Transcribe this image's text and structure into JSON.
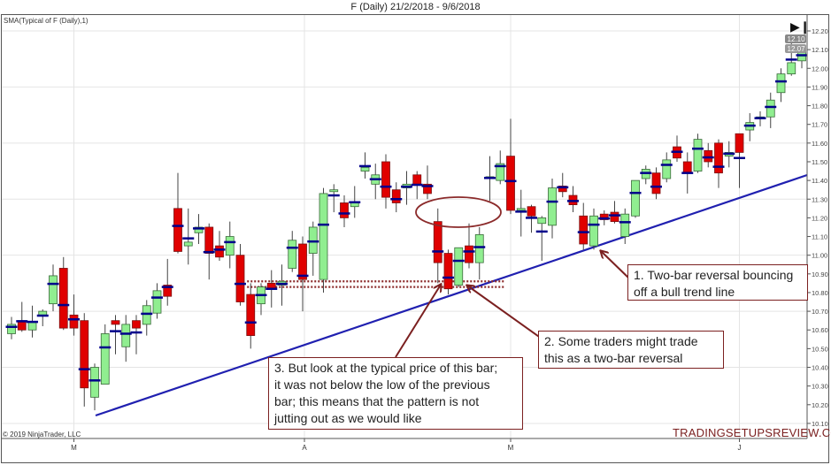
{
  "title": "F (Daily)  21/2/2018 - 9/6/2018",
  "indicator_label": "SMA(Typical of F (Daily),1)",
  "copyright": "© 2019 NinjaTrader, LLC",
  "watermark": "TRADINGSETUPSREVIEW.COM",
  "end_icon": "skip-to-end-icon",
  "colors": {
    "up": "#90ee90",
    "down": "#e00000",
    "typical": "#00008b",
    "trendline": "#2020b0",
    "annotation": "#7b2020"
  },
  "annotations": [
    {
      "lines": [
        "1. Two-bar reversal bouncing",
        "off a bull trend line"
      ]
    },
    {
      "lines": [
        "2. Some traders might trade",
        "this as a two-bar reversal"
      ]
    },
    {
      "lines": [
        "3. But look at the typical price of this bar;",
        "it was not below the low of the previous",
        "bar; this means that the pattern is not",
        "jutting out as we would like"
      ]
    }
  ],
  "chart_data": {
    "type": "candlestick",
    "title": "F (Daily)  21/2/2018 - 9/6/2018",
    "ylim": [
      10.05,
      12.25
    ],
    "yticks": [
      "12.20",
      "12.10",
      "12.00",
      "11.90",
      "11.80",
      "11.70",
      "11.60",
      "11.50",
      "11.40",
      "11.30",
      "11.20",
      "11.10",
      "11.00",
      "10.90",
      "10.80",
      "10.70",
      "10.60",
      "10.50",
      "10.40",
      "10.30",
      "10.20",
      "10.10"
    ],
    "xticks": [
      {
        "label": "M",
        "bar": 6
      },
      {
        "label": "A",
        "bar": 28
      },
      {
        "label": "M",
        "bar": 48
      },
      {
        "label": "J",
        "bar": 70
      }
    ],
    "grid": true,
    "last_price_labels": [
      "12.10",
      "12.07"
    ],
    "overlay": "typical price (H+L+C)/3",
    "trendline": {
      "start": {
        "bar": 8,
        "price": 10.14
      },
      "end": {
        "bar": 76.5,
        "price": 11.43
      }
    },
    "support_band": {
      "prices": [
        10.86,
        10.83
      ],
      "from_bar": 23,
      "to_bar": 47
    },
    "candles": [
      [
        10.58,
        10.67,
        10.55,
        10.63
      ],
      [
        10.65,
        10.75,
        10.59,
        10.6
      ],
      [
        10.6,
        10.73,
        10.56,
        10.64
      ],
      [
        10.68,
        10.71,
        10.62,
        10.7
      ],
      [
        10.74,
        10.95,
        10.7,
        10.89
      ],
      [
        10.93,
        10.99,
        10.6,
        10.61
      ],
      [
        10.68,
        10.79,
        10.57,
        10.61
      ],
      [
        10.65,
        10.69,
        10.19,
        10.29
      ],
      [
        10.24,
        10.42,
        10.17,
        10.4
      ],
      [
        10.31,
        10.63,
        10.31,
        10.58
      ],
      [
        10.65,
        10.68,
        10.47,
        10.63
      ],
      [
        10.51,
        10.68,
        10.43,
        10.63
      ],
      [
        10.65,
        10.68,
        10.47,
        10.61
      ],
      [
        10.63,
        10.76,
        10.57,
        10.73
      ],
      [
        10.69,
        10.85,
        10.66,
        10.81
      ],
      [
        10.84,
        10.98,
        10.73,
        10.78
      ],
      [
        11.25,
        11.44,
        11.01,
        11.02
      ],
      [
        11.05,
        11.25,
        10.95,
        11.07
      ],
      [
        11.12,
        11.22,
        11.06,
        11.15
      ],
      [
        11.15,
        11.17,
        10.87,
        11.01
      ],
      [
        11.05,
        11.13,
        10.97,
        10.99
      ],
      [
        11.0,
        11.18,
        10.93,
        11.1
      ],
      [
        11.0,
        11.06,
        10.73,
        10.75
      ],
      [
        10.79,
        10.85,
        10.5,
        10.57
      ],
      [
        10.74,
        10.85,
        10.68,
        10.83
      ],
      [
        10.85,
        10.92,
        10.72,
        10.82
      ],
      [
        10.84,
        10.95,
        10.73,
        10.86
      ],
      [
        10.93,
        11.13,
        10.91,
        11.08
      ],
      [
        11.06,
        11.1,
        10.7,
        10.87
      ],
      [
        11.01,
        11.18,
        10.89,
        11.15
      ],
      [
        10.87,
        11.36,
        10.8,
        11.33
      ],
      [
        11.34,
        11.38,
        11.23,
        11.35
      ],
      [
        11.28,
        11.32,
        11.15,
        11.2
      ],
      [
        11.26,
        11.37,
        11.2,
        11.28
      ],
      [
        11.45,
        11.55,
        11.41,
        11.47
      ],
      [
        11.38,
        11.49,
        11.3,
        11.43
      ],
      [
        11.5,
        11.54,
        11.25,
        11.31
      ],
      [
        11.35,
        11.39,
        11.23,
        11.28
      ],
      [
        11.36,
        11.45,
        11.27,
        11.38
      ],
      [
        11.43,
        11.45,
        11.3,
        11.38
      ],
      [
        11.38,
        11.48,
        11.3,
        11.33
      ],
      [
        11.18,
        11.25,
        10.85,
        10.96
      ],
      [
        11.01,
        11.03,
        10.79,
        10.82
      ],
      [
        10.84,
        11.04,
        10.83,
        11.04
      ],
      [
        11.05,
        11.17,
        10.93,
        10.96
      ],
      [
        10.96,
        11.15,
        10.87,
        11.11
      ],
      [
        11.41,
        11.53,
        11.29,
        11.42
      ],
      [
        11.4,
        11.56,
        11.38,
        11.49
      ],
      [
        11.53,
        11.73,
        11.22,
        11.24
      ],
      [
        11.24,
        11.35,
        11.1,
        11.25
      ],
      [
        11.26,
        11.27,
        11.12,
        11.21
      ],
      [
        11.17,
        11.21,
        10.97,
        11.2
      ],
      [
        11.16,
        11.41,
        11.09,
        11.36
      ],
      [
        11.37,
        11.44,
        11.31,
        11.34
      ],
      [
        11.32,
        11.37,
        11.23,
        11.27
      ],
      [
        11.21,
        11.28,
        11.03,
        11.06
      ],
      [
        11.05,
        11.25,
        11.03,
        11.21
      ],
      [
        11.22,
        11.24,
        11.16,
        11.19
      ],
      [
        11.23,
        11.29,
        11.17,
        11.18
      ],
      [
        11.1,
        11.25,
        11.06,
        11.22
      ],
      [
        11.21,
        11.4,
        11.2,
        11.4
      ],
      [
        11.41,
        11.48,
        11.38,
        11.46
      ],
      [
        11.44,
        11.47,
        11.3,
        11.33
      ],
      [
        11.41,
        11.55,
        11.39,
        11.51
      ],
      [
        11.58,
        11.64,
        11.5,
        11.52
      ],
      [
        11.5,
        11.55,
        11.33,
        11.44
      ],
      [
        11.45,
        11.65,
        11.44,
        11.62
      ],
      [
        11.56,
        11.6,
        11.47,
        11.5
      ],
      [
        11.6,
        11.62,
        11.36,
        11.44
      ],
      [
        11.53,
        11.61,
        11.47,
        11.55
      ],
      [
        11.65,
        11.65,
        11.36,
        11.55
      ],
      [
        11.67,
        11.76,
        11.61,
        11.71
      ],
      [
        11.73,
        11.77,
        11.69,
        11.74
      ],
      [
        11.74,
        11.87,
        11.68,
        11.83
      ],
      [
        11.87,
        12.0,
        11.82,
        11.97
      ],
      [
        11.97,
        12.15,
        11.96,
        12.03
      ],
      [
        12.04,
        12.11,
        12.0,
        12.1
      ]
    ]
  }
}
